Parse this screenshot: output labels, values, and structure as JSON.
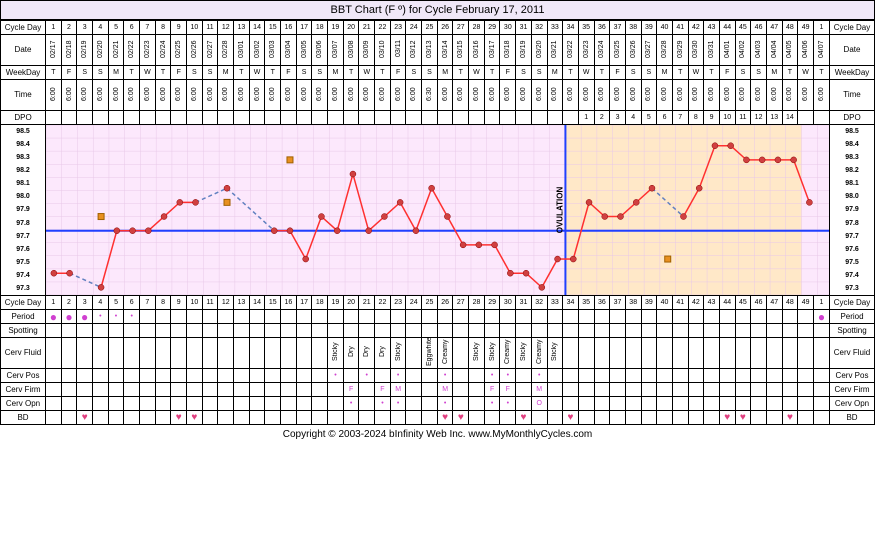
{
  "title": "BBT Chart (F º) for Cycle February 17, 2011",
  "footer": "Copyright © 2003-2024 bInfinity Web Inc.    www.MyMonthlyCycles.com",
  "labels": {
    "cycleDay": "Cycle Day",
    "date": "Date",
    "weekday": "WeekDay",
    "time": "Time",
    "dpo": "DPO",
    "period": "Period",
    "spotting": "Spotting",
    "cervFluid": "Cerv Fluid",
    "cervPos": "Cerv Pos",
    "cervFirm": "Cerv Firm",
    "cervOpn": "Cerv Opn",
    "bd": "BD",
    "ovulation": "OVULATION"
  },
  "cycleDays": [
    1,
    2,
    3,
    4,
    5,
    6,
    7,
    8,
    9,
    10,
    11,
    12,
    13,
    14,
    15,
    16,
    17,
    18,
    19,
    20,
    21,
    22,
    23,
    24,
    25,
    26,
    27,
    28,
    29,
    30,
    31,
    32,
    33,
    34,
    35,
    36,
    37,
    38,
    39,
    40,
    41,
    42,
    43,
    44,
    45,
    46,
    47,
    48,
    49,
    1
  ],
  "dates": [
    "02/17",
    "02/18",
    "02/19",
    "02/20",
    "02/21",
    "02/22",
    "02/23",
    "02/24",
    "02/25",
    "02/26",
    "02/27",
    "02/28",
    "03/01",
    "03/02",
    "03/03",
    "03/04",
    "03/05",
    "03/06",
    "03/07",
    "03/08",
    "03/09",
    "03/10",
    "03/11",
    "03/12",
    "03/13",
    "03/14",
    "03/15",
    "03/16",
    "03/17",
    "03/18",
    "03/19",
    "03/20",
    "03/21",
    "03/22",
    "03/23",
    "03/24",
    "03/25",
    "03/26",
    "03/27",
    "03/28",
    "03/29",
    "03/30",
    "03/31",
    "04/01",
    "04/02",
    "04/03",
    "04/04",
    "04/05",
    "04/06",
    "04/07"
  ],
  "weekdays": [
    "T",
    "F",
    "S",
    "S",
    "M",
    "T",
    "W",
    "T",
    "F",
    "S",
    "S",
    "M",
    "T",
    "W",
    "T",
    "F",
    "S",
    "S",
    "M",
    "T",
    "W",
    "T",
    "F",
    "S",
    "S",
    "M",
    "T",
    "W",
    "T",
    "F",
    "S",
    "S",
    "M",
    "T",
    "W",
    "T",
    "F",
    "S",
    "S",
    "M",
    "T",
    "W",
    "T",
    "F",
    "S",
    "S",
    "M",
    "T",
    "W",
    "T"
  ],
  "times": [
    "6:00",
    "6:00",
    "6:00",
    "6:00",
    "6:00",
    "6:00",
    "6:00",
    "6:00",
    "6:00",
    "6:00",
    "6:00",
    "6:00",
    "6:00",
    "6:00",
    "6:00",
    "6:00",
    "6:00",
    "6:00",
    "6:00",
    "6:00",
    "6:00",
    "6:00",
    "6:00",
    "6:00",
    "6:30",
    "6:00",
    "6:00",
    "6:00",
    "6:00",
    "6:00",
    "6:00",
    "6:00",
    "6:00",
    "6:00",
    "6:00",
    "6:00",
    "6:00",
    "6:00",
    "6:00",
    "6:00",
    "6:00",
    "6:00",
    "6:00",
    "6:00",
    "6:00",
    "6:00",
    "6:00",
    "6:00",
    "6:00",
    "6:00"
  ],
  "dpo": [
    "",
    "",
    "",
    "",
    "",
    "",
    "",
    "",
    "",
    "",
    "",
    "",
    "",
    "",
    "",
    "",
    "",
    "",
    "",
    "",
    "",
    "",
    "",
    "",
    "",
    "",
    "",
    "",
    "",
    "",
    "",
    "",
    "",
    "",
    "1",
    "2",
    "3",
    "4",
    "5",
    "6",
    "7",
    "8",
    "9",
    "10",
    "11",
    "12",
    "13",
    "14",
    "",
    ""
  ],
  "temp_scale": [
    98.5,
    98.4,
    98.3,
    98.2,
    98.1,
    98.0,
    97.9,
    97.8,
    97.7,
    97.6,
    97.5,
    97.4,
    97.3
  ],
  "temps": [
    97.5,
    97.5,
    null,
    97.4,
    97.8,
    97.8,
    97.8,
    97.9,
    98.0,
    98.0,
    null,
    98.1,
    null,
    null,
    97.8,
    97.8,
    97.6,
    97.9,
    97.8,
    98.2,
    97.8,
    97.9,
    98.0,
    97.8,
    98.1,
    97.9,
    97.7,
    97.7,
    97.7,
    97.5,
    97.5,
    97.4,
    97.6,
    97.6,
    98.0,
    97.9,
    97.9,
    98.0,
    98.1,
    null,
    97.9,
    98.1,
    98.4,
    98.4,
    98.3,
    98.3,
    98.3,
    98.3,
    98.0,
    null
  ],
  "squares": [
    {
      "d": 4,
      "t": 97.9
    },
    {
      "d": 12,
      "t": 98.0
    },
    {
      "d": 16,
      "t": 98.3
    },
    {
      "d": 40,
      "t": 97.6
    }
  ],
  "coverline": 97.8,
  "ovu_day": 34,
  "chart": {
    "line_color": "#ff3030",
    "dot_color": "#d04040",
    "dashed_color": "#6080c0",
    "square_color": "#e89020",
    "coverline_color": "#2040ff",
    "ovuline_color": "#2040ff",
    "grid_color": "#e8c8e8",
    "grid_bg": "#fce8fc",
    "ovu_bg": "#ffe8c8"
  },
  "period": [
    "big",
    "big",
    "big",
    "small",
    "small",
    "small",
    "",
    "",
    "",
    "",
    "",
    "",
    "",
    "",
    "",
    "",
    "",
    "",
    "",
    "",
    "",
    "",
    "",
    "",
    "",
    "",
    "",
    "",
    "",
    "",
    "",
    "",
    "",
    "",
    "",
    "",
    "",
    "",
    "",
    "",
    "",
    "",
    "",
    "",
    "",
    "",
    "",
    "",
    "",
    "big"
  ],
  "cervFluid": [
    "",
    "",
    "",
    "",
    "",
    "",
    "",
    "",
    "",
    "",
    "",
    "",
    "",
    "",
    "",
    "",
    "",
    "",
    "Sticky",
    "Dry",
    "Dry",
    "Dry",
    "Sticky",
    "",
    "Eggwhite",
    "Creamy",
    "",
    "Sticky",
    "Sticky",
    "Creamy",
    "Sticky",
    "Creamy",
    "Sticky",
    "",
    "",
    "",
    "",
    "",
    "",
    "",
    "",
    "",
    "",
    "",
    "",
    "",
    "",
    "",
    "",
    ""
  ],
  "cervPos": [
    "",
    "",
    "",
    "",
    "",
    "",
    "",
    "",
    "",
    "",
    "",
    "",
    "",
    "",
    "",
    "",
    "",
    "",
    "•",
    "",
    "•",
    "",
    "•",
    "",
    "",
    "•",
    "",
    "",
    "•",
    "•",
    "",
    "•",
    "",
    "",
    "",
    "",
    "",
    "",
    "",
    "",
    "",
    "",
    "",
    "",
    "",
    "",
    "",
    "",
    "",
    ""
  ],
  "cervFirm": [
    "",
    "",
    "",
    "",
    "",
    "",
    "",
    "",
    "",
    "",
    "",
    "",
    "",
    "",
    "",
    "",
    "",
    "",
    "",
    "F",
    "",
    "F",
    "M",
    "",
    "",
    "M",
    "",
    "",
    "F",
    "F",
    "",
    "M",
    "",
    "",
    "",
    "",
    "",
    "",
    "",
    "",
    "",
    "",
    "",
    "",
    "",
    "",
    "",
    "",
    "",
    ""
  ],
  "cervOpn": [
    "",
    "",
    "",
    "",
    "",
    "",
    "",
    "",
    "",
    "",
    "",
    "",
    "",
    "",
    "",
    "",
    "",
    "",
    "",
    "•",
    "",
    "•",
    "•",
    "",
    "",
    "•",
    "",
    "",
    "•",
    "•",
    "",
    "O",
    "",
    "",
    "",
    "",
    "",
    "",
    "",
    "",
    "",
    "",
    "",
    "",
    "",
    "",
    "",
    "",
    "",
    ""
  ],
  "bd": [
    "",
    "",
    "♥",
    "",
    "",
    "",
    "",
    "",
    "♥",
    "♥",
    "",
    "",
    "",
    "",
    "",
    "",
    "",
    "",
    "",
    "",
    "",
    "",
    "",
    "",
    "",
    "♥",
    "♥",
    "",
    "",
    "",
    "♥",
    "",
    "",
    "♥",
    "",
    "",
    "",
    "",
    "",
    "",
    "",
    "",
    "",
    "♥",
    "♥",
    "",
    "",
    "♥",
    "",
    ""
  ]
}
